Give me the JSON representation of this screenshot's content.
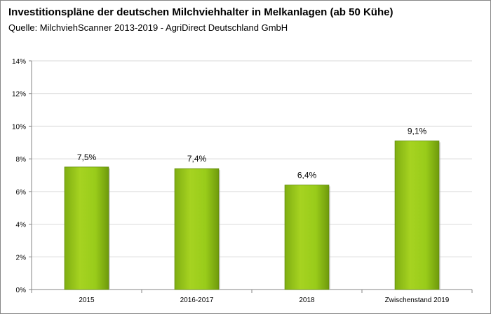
{
  "chart_data": {
    "type": "bar",
    "title": "Investitionspläne der deutschen Milchviehhalter in Melkanlagen (ab 50 Kühe)",
    "subtitle": "Quelle: MilchviehScanner 2013-2019 - AgriDirect Deutschland GmbH",
    "categories": [
      "2015",
      "2016-2017",
      "2018",
      "Zwischenstand 2019"
    ],
    "values": [
      7.5,
      7.4,
      6.4,
      9.1
    ],
    "value_labels": [
      "7,5%",
      "7,4%",
      "6,4%",
      "9,1%"
    ],
    "y_ticks": [
      0,
      2,
      4,
      6,
      8,
      10,
      12,
      14
    ],
    "y_tick_labels": [
      "0%",
      "2%",
      "4%",
      "6%",
      "8%",
      "10%",
      "12%",
      "14%"
    ],
    "ylim": [
      0,
      14
    ],
    "xlabel": "",
    "ylabel": "",
    "grid": true,
    "bar_color": "#99cc1a",
    "bar_edge_color": "#5f8a0a",
    "grid_color": "#d9d9d9"
  }
}
